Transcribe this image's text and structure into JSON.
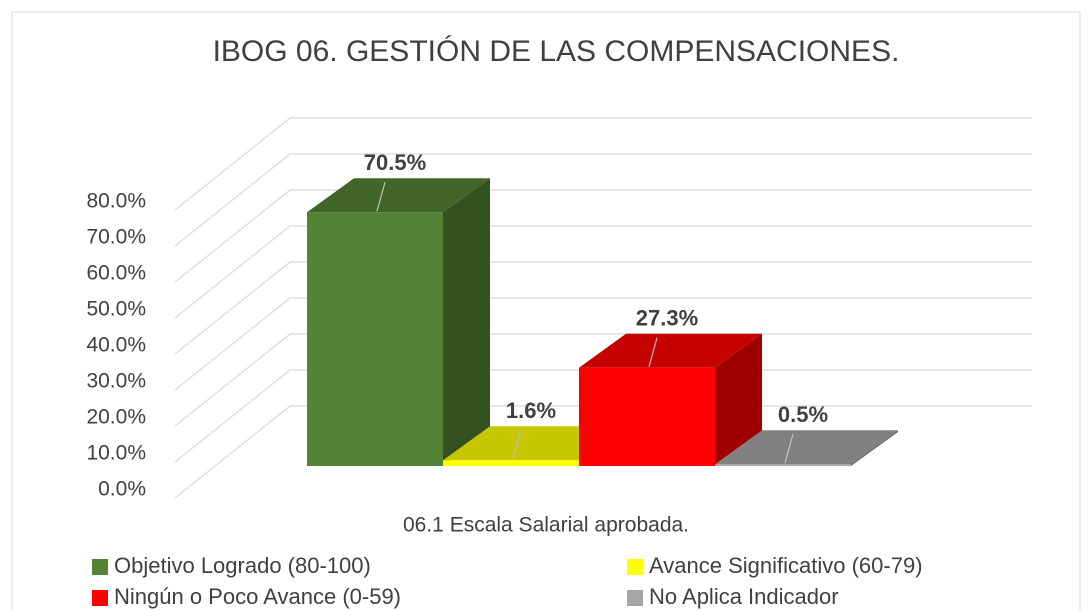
{
  "chart_data": {
    "type": "bar3d",
    "title": "IBOG 06. GESTIÓN DE LAS COMPENSACIONES.",
    "categories": [
      "06.1 Escala Salarial aprobada."
    ],
    "series": [
      {
        "name": "Objetivo Logrado (80-100)",
        "color": "#548235",
        "values": [
          70.5
        ],
        "value_labels": [
          "70.5%"
        ]
      },
      {
        "name": "Avance Significativo (60-79)",
        "color": "#ffff00",
        "values": [
          1.6
        ],
        "value_labels": [
          "1.6%"
        ]
      },
      {
        "name": "Ningún o Poco Avance (0-59)",
        "color": "#ff0000",
        "values": [
          27.3
        ],
        "value_labels": [
          "27.3%"
        ]
      },
      {
        "name": "No Aplica Indicador",
        "color": "#a6a6a6",
        "values": [
          0.5
        ],
        "value_labels": [
          "0.5%"
        ]
      }
    ],
    "ylim": [
      0,
      80
    ],
    "yticks": [
      {
        "value": 0,
        "label": "0.0%"
      },
      {
        "value": 10,
        "label": "10.0%"
      },
      {
        "value": 20,
        "label": "20.0%"
      },
      {
        "value": 30,
        "label": "30.0%"
      },
      {
        "value": 40,
        "label": "40.0%"
      },
      {
        "value": 50,
        "label": "50.0%"
      },
      {
        "value": 60,
        "label": "60.0%"
      },
      {
        "value": 70,
        "label": "70.0%"
      },
      {
        "value": 80,
        "label": "80.0%"
      }
    ],
    "grid": true
  }
}
